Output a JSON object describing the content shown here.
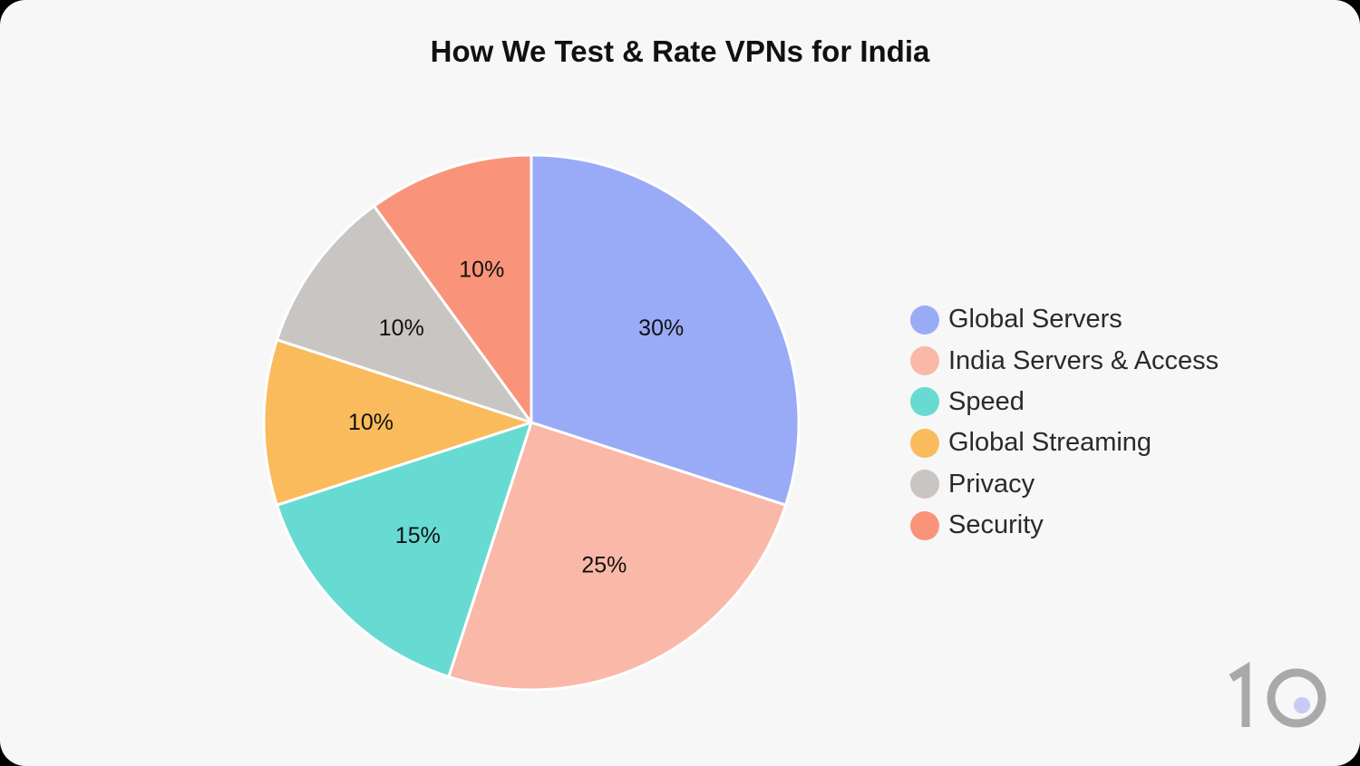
{
  "chart_data": {
    "type": "pie",
    "title": "How We Test & Rate VPNs for India",
    "legend_position": "right",
    "slices": [
      {
        "label": "Global Servers",
        "value": 30,
        "display": "30%",
        "color": "#99abf7"
      },
      {
        "label": "India Servers & Access",
        "value": 25,
        "display": "25%",
        "color": "#fab8a8"
      },
      {
        "label": "Speed",
        "value": 15,
        "display": "15%",
        "color": "#67dbd2"
      },
      {
        "label": "Global Streaming",
        "value": 10,
        "display": "10%",
        "color": "#f9bb5c"
      },
      {
        "label": "Privacy",
        "value": 10,
        "display": "10%",
        "color": "#c9c5c3"
      },
      {
        "label": "Security",
        "value": 10,
        "display": "10%",
        "color": "#f9947b"
      }
    ]
  },
  "logo": {
    "text": "10",
    "icon": "top10vpn-logo-icon",
    "color": "#a9a9a9",
    "dot_color": "#c8c9f5"
  },
  "colors": {
    "background": "#f7f7f7",
    "slice_border": "#ffffff"
  }
}
